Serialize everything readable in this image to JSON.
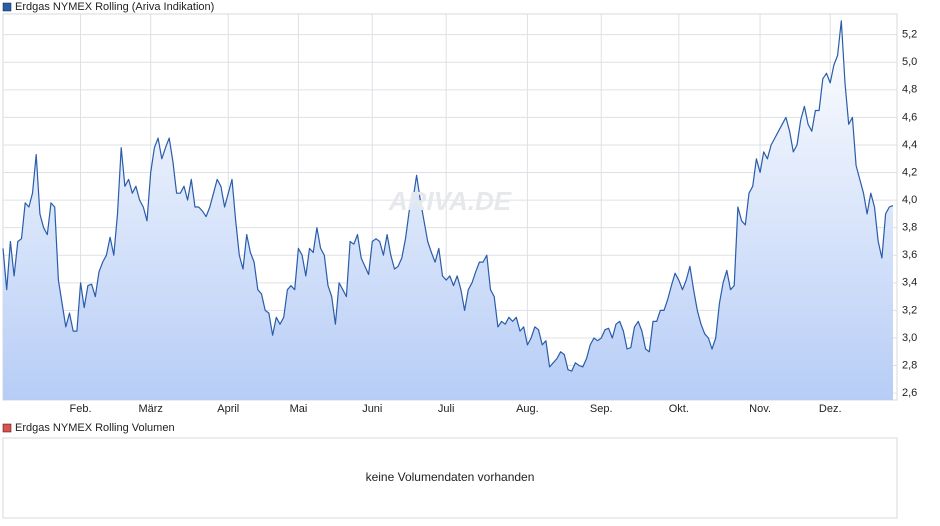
{
  "chart_data": {
    "type": "area",
    "legend": "Erdgas NYMEX Rolling (Ariva Indikation)",
    "color": "#2a5caa",
    "watermark": "ARIVA.DE",
    "values": [
      3.65,
      3.35,
      3.7,
      3.45,
      3.7,
      3.72,
      3.98,
      3.95,
      4.05,
      4.33,
      3.9,
      3.8,
      3.75,
      3.98,
      3.95,
      3.42,
      3.25,
      3.08,
      3.18,
      3.05,
      3.05,
      3.4,
      3.22,
      3.38,
      3.39,
      3.3,
      3.48,
      3.55,
      3.6,
      3.73,
      3.6,
      3.9,
      4.38,
      4.1,
      4.15,
      4.05,
      4.1,
      4.0,
      3.95,
      3.85,
      4.2,
      4.38,
      4.45,
      4.3,
      4.38,
      4.45,
      4.28,
      4.05,
      4.05,
      4.1,
      4.0,
      4.15,
      3.95,
      3.95,
      3.92,
      3.88,
      3.95,
      4.05,
      4.15,
      4.1,
      3.95,
      4.05,
      4.15,
      3.85,
      3.6,
      3.5,
      3.75,
      3.62,
      3.55,
      3.35,
      3.32,
      3.2,
      3.18,
      3.02,
      3.15,
      3.1,
      3.15,
      3.35,
      3.38,
      3.35,
      3.65,
      3.6,
      3.45,
      3.65,
      3.62,
      3.8,
      3.65,
      3.6,
      3.38,
      3.3,
      3.1,
      3.4,
      3.35,
      3.3,
      3.7,
      3.68,
      3.75,
      3.58,
      3.52,
      3.46,
      3.7,
      3.72,
      3.7,
      3.6,
      3.75,
      3.6,
      3.5,
      3.52,
      3.58,
      3.72,
      3.92,
      4.0,
      4.18,
      4.0,
      3.85,
      3.7,
      3.62,
      3.55,
      3.65,
      3.45,
      3.42,
      3.45,
      3.38,
      3.45,
      3.35,
      3.2,
      3.35,
      3.4,
      3.48,
      3.55,
      3.55,
      3.6,
      3.35,
      3.3,
      3.08,
      3.12,
      3.1,
      3.15,
      3.12,
      3.15,
      3.05,
      3.08,
      2.95,
      3.0,
      3.08,
      3.06,
      2.95,
      2.98,
      2.79,
      2.82,
      2.85,
      2.9,
      2.88,
      2.77,
      2.76,
      2.82,
      2.8,
      2.79,
      2.85,
      2.95,
      3.0,
      2.98,
      3.0,
      3.06,
      3.07,
      3.0,
      3.1,
      3.12,
      3.05,
      2.92,
      2.93,
      3.08,
      3.12,
      3.05,
      2.92,
      2.9,
      3.12,
      3.12,
      3.2,
      3.2,
      3.28,
      3.38,
      3.47,
      3.42,
      3.35,
      3.42,
      3.52,
      3.35,
      3.2,
      3.1,
      3.03,
      3.0,
      2.92,
      3.0,
      3.25,
      3.4,
      3.49,
      3.35,
      3.38,
      3.95,
      3.85,
      3.82,
      4.05,
      4.1,
      4.3,
      4.2,
      4.35,
      4.3,
      4.4,
      4.45,
      4.5,
      4.55,
      4.6,
      4.5,
      4.35,
      4.4,
      4.58,
      4.68,
      4.55,
      4.5,
      4.65,
      4.65,
      4.88,
      4.92,
      4.85,
      4.98,
      5.05,
      5.3,
      4.85,
      4.55,
      4.6,
      4.25,
      4.15,
      4.05,
      3.9,
      4.05,
      3.95,
      3.7,
      3.58,
      3.9,
      3.95,
      3.96
    ],
    "xlim": [
      0,
      241
    ],
    "xticks": [
      {
        "value": 21,
        "label": "Feb."
      },
      {
        "value": 40,
        "label": "März"
      },
      {
        "value": 61,
        "label": "April"
      },
      {
        "value": 80,
        "label": "Mai"
      },
      {
        "value": 100,
        "label": "Juni"
      },
      {
        "value": 120,
        "label": "Juli"
      },
      {
        "value": 142,
        "label": "Aug."
      },
      {
        "value": 162,
        "label": "Sep."
      },
      {
        "value": 183,
        "label": "Okt."
      },
      {
        "value": 205,
        "label": "Nov."
      },
      {
        "value": 224,
        "label": "Dez."
      }
    ],
    "ylim": [
      2.55,
      5.35
    ],
    "yticks": [
      {
        "value": 2.6,
        "label": "2,6"
      },
      {
        "value": 2.8,
        "label": "2,8"
      },
      {
        "value": 3.0,
        "label": "3,0"
      },
      {
        "value": 3.2,
        "label": "3,2"
      },
      {
        "value": 3.4,
        "label": "3,4"
      },
      {
        "value": 3.6,
        "label": "3,6"
      },
      {
        "value": 3.8,
        "label": "3,8"
      },
      {
        "value": 4.0,
        "label": "4,0"
      },
      {
        "value": 4.2,
        "label": "4,2"
      },
      {
        "value": 4.4,
        "label": "4,4"
      },
      {
        "value": 4.6,
        "label": "4,6"
      },
      {
        "value": 4.8,
        "label": "4,8"
      },
      {
        "value": 5.0,
        "label": "5,0"
      },
      {
        "value": 5.2,
        "label": "5,2"
      }
    ],
    "grid": true,
    "volume_panel": {
      "legend": "Erdgas NYMEX Rolling Volumen",
      "color": "#d9534f",
      "message": "keine Volumendaten vorhanden"
    }
  }
}
